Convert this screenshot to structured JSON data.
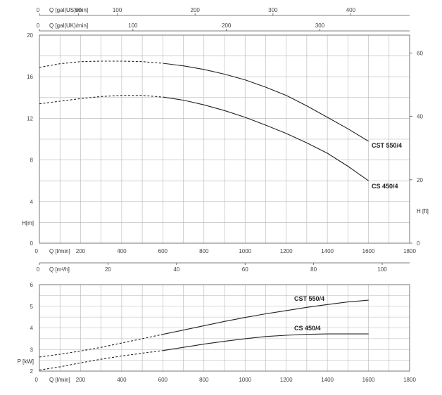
{
  "chart_data": [
    {
      "type": "line",
      "title": "",
      "xlabel": "Q [l/min]",
      "ylabel": "H[m]",
      "ylabel_right": "H [ft]",
      "x_ticks": [
        0,
        200,
        400,
        600,
        800,
        1000,
        1200,
        1400,
        1600,
        1800
      ],
      "xlim": [
        0,
        1800
      ],
      "y_ticks": [
        0,
        4,
        8,
        12,
        16,
        20
      ],
      "ylim": [
        0,
        20
      ],
      "y_right_ticks": [
        0,
        20,
        40,
        60
      ],
      "top_axes": [
        {
          "label": "Q [gal(US)/min]",
          "ticks": [
            0,
            50,
            100,
            200,
            300,
            400
          ],
          "factor": 3.785
        },
        {
          "label": "Q [gal(UK)/min]",
          "ticks": [
            0,
            100,
            200,
            300
          ],
          "factor": 4.546
        }
      ],
      "grid": true,
      "series": [
        {
          "name": "CST 550/4",
          "dashed_until_x": 600,
          "x": [
            0,
            100,
            200,
            300,
            400,
            500,
            600,
            700,
            800,
            900,
            1000,
            1100,
            1200,
            1300,
            1400,
            1500,
            1600
          ],
          "values": [
            16.9,
            17.25,
            17.45,
            17.5,
            17.5,
            17.45,
            17.3,
            17.05,
            16.7,
            16.25,
            15.7,
            15.0,
            14.2,
            13.2,
            12.1,
            11.0,
            9.8
          ]
        },
        {
          "name": "CS 450/4",
          "dashed_until_x": 600,
          "x": [
            0,
            100,
            200,
            300,
            400,
            500,
            600,
            700,
            800,
            900,
            1000,
            1100,
            1200,
            1300,
            1400,
            1500,
            1600
          ],
          "values": [
            13.4,
            13.65,
            13.9,
            14.1,
            14.2,
            14.2,
            14.05,
            13.75,
            13.3,
            12.75,
            12.1,
            11.35,
            10.55,
            9.65,
            8.65,
            7.4,
            6.0
          ]
        }
      ]
    },
    {
      "type": "line",
      "title": "",
      "xlabel": "Q [l/min]",
      "ylabel": "P [kW]",
      "x_ticks": [
        0,
        200,
        400,
        600,
        800,
        1000,
        1200,
        1400,
        1600,
        1800
      ],
      "xlim": [
        0,
        1800
      ],
      "y_ticks": [
        2,
        3,
        4,
        5,
        6
      ],
      "ylim": [
        2,
        6
      ],
      "top_axis": {
        "label": "Q [m³/h]",
        "ticks": [
          0,
          20,
          40,
          60,
          80,
          100
        ],
        "factor": 16.667
      },
      "grid": true,
      "series": [
        {
          "name": "CST 550/4",
          "dashed_until_x": 600,
          "x": [
            0,
            100,
            200,
            300,
            400,
            500,
            600,
            700,
            800,
            900,
            1000,
            1100,
            1200,
            1300,
            1400,
            1500,
            1600
          ],
          "values": [
            2.65,
            2.78,
            2.93,
            3.1,
            3.3,
            3.5,
            3.7,
            3.9,
            4.1,
            4.3,
            4.48,
            4.65,
            4.8,
            4.95,
            5.08,
            5.2,
            5.28
          ]
        },
        {
          "name": "CS 450/4",
          "dashed_until_x": 600,
          "x": [
            0,
            100,
            200,
            300,
            400,
            500,
            600,
            700,
            800,
            900,
            1000,
            1100,
            1200,
            1300,
            1400,
            1500,
            1600
          ],
          "values": [
            2.05,
            2.2,
            2.38,
            2.55,
            2.7,
            2.83,
            2.95,
            3.1,
            3.25,
            3.38,
            3.5,
            3.6,
            3.66,
            3.7,
            3.72,
            3.72,
            3.72
          ]
        }
      ]
    }
  ]
}
